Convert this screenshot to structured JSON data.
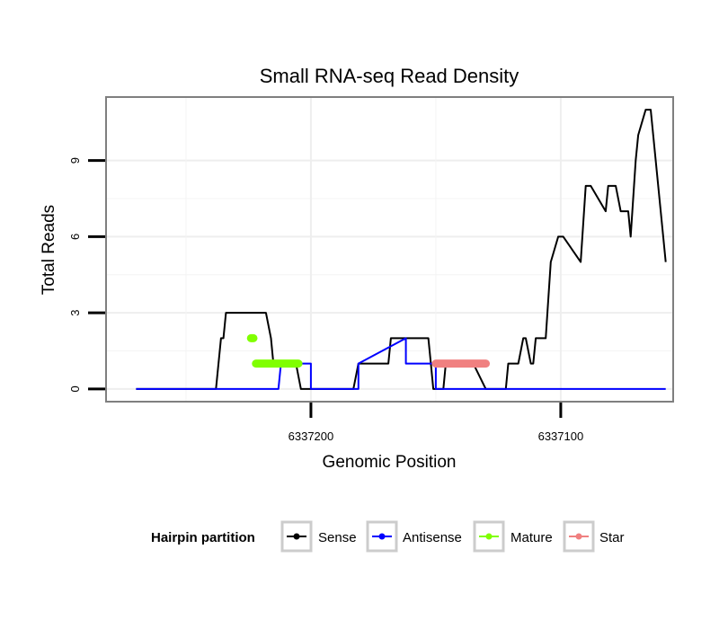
{
  "chart_data": {
    "type": "line",
    "title": "Small RNA-seq Read Density",
    "xlabel": "Genomic Position",
    "ylabel": "Total Reads",
    "xlim": [
      6337282,
      6337055
    ],
    "ylim": [
      -0.5,
      11.5
    ],
    "grid": true,
    "x_ticks": [
      {
        "value": 6337200,
        "label": "6337200"
      },
      {
        "value": 6337100,
        "label": "6337100"
      }
    ],
    "y_ticks": [
      {
        "value": 0,
        "label": "0"
      },
      {
        "value": 3,
        "label": "3"
      },
      {
        "value": 6,
        "label": "6"
      },
      {
        "value": 9,
        "label": "9"
      }
    ],
    "legend": {
      "title": "Hairpin partition",
      "position": "bottom",
      "entries": [
        {
          "label": "Sense",
          "color": "#000000"
        },
        {
          "label": "Antisense",
          "color": "#0000ff"
        },
        {
          "label": "Mature",
          "color": "#80ff00"
        },
        {
          "label": "Star",
          "color": "#f08080"
        }
      ]
    },
    "series": [
      {
        "name": "Sense",
        "color": "#000000",
        "style": "line",
        "x": [
          6337270,
          6337238,
          6337236,
          6337235,
          6337234,
          6337218,
          6337216,
          6337215,
          6337206,
          6337204,
          6337198,
          6337196,
          6337183,
          6337181,
          6337179,
          6337169,
          6337168,
          6337164,
          6337159,
          6337153,
          6337152,
          6337151,
          6337147,
          6337146,
          6337142,
          6337137,
          6337135,
          6337130,
          6337124,
          6337122,
          6337121,
          6337117,
          6337115,
          6337114,
          6337112,
          6337111,
          6337110,
          6337106,
          6337104,
          6337101,
          6337099,
          6337092,
          6337090,
          6337089,
          6337088,
          6337082,
          6337081,
          6337078,
          6337076,
          6337073,
          6337072,
          6337070,
          6337069,
          6337066,
          6337065,
          6337064,
          6337058
        ],
        "y": [
          0,
          0,
          2,
          2,
          3,
          3,
          2,
          1,
          1,
          0,
          0,
          0,
          0,
          1,
          1,
          1,
          2,
          2,
          2,
          2,
          1,
          0,
          0,
          1,
          1,
          1,
          1,
          0,
          0,
          0,
          1,
          1,
          2,
          2,
          1,
          1,
          2,
          2,
          5,
          6,
          6,
          5,
          8,
          8,
          8,
          7,
          8,
          8,
          7,
          7,
          6,
          9,
          10,
          11,
          11,
          11,
          5
        ]
      },
      {
        "name": "Antisense",
        "color": "#0000ff",
        "style": "line",
        "x": [
          6337270,
          6337213,
          6337212,
          6337212,
          6337200,
          6337200,
          6337181,
          6337181,
          6337162,
          6337162,
          6337150,
          6337150,
          6337058
        ],
        "y": [
          0,
          0,
          1,
          1,
          1,
          0,
          0,
          1,
          2,
          1,
          1,
          0,
          0
        ]
      },
      {
        "name": "Mature",
        "color": "#80ff00",
        "style": "segments",
        "segments": [
          {
            "x": [
              6337224,
              6337223
            ],
            "y": [
              2,
              2
            ]
          },
          {
            "x": [
              6337222,
              6337205
            ],
            "y": [
              1,
              1
            ]
          }
        ]
      },
      {
        "name": "Star",
        "color": "#f08080",
        "style": "segments",
        "segments": [
          {
            "x": [
              6337150,
              6337130
            ],
            "y": [
              1,
              1
            ]
          }
        ]
      }
    ]
  }
}
